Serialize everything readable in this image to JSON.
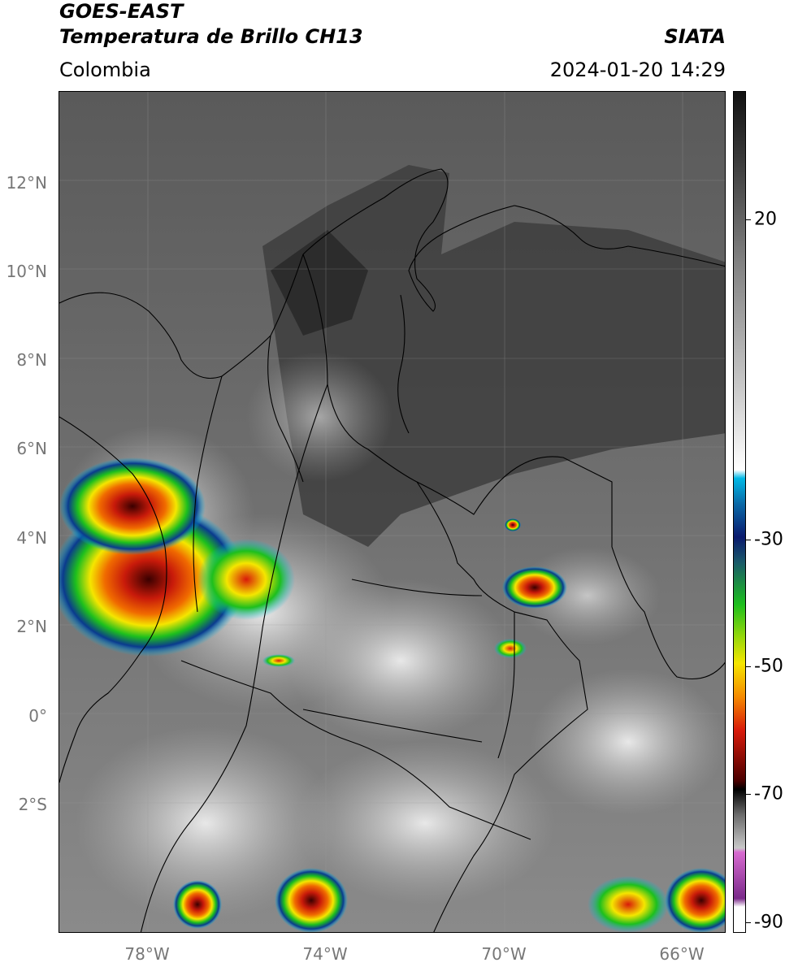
{
  "header": {
    "title_line1": "GOES-EAST",
    "title_line2": "Temperatura de Brillo CH13",
    "region": "Colombia",
    "brand": "SIATA",
    "timestamp": "2024-01-20 14:29"
  },
  "map": {
    "lat_labels": [
      "12°N",
      "10°N",
      "8°N",
      "6°N",
      "4°N",
      "2°N",
      "0°",
      "2°S"
    ],
    "lon_labels": [
      "78°W",
      "74°W",
      "70°W",
      "66°W"
    ]
  },
  "colorbar": {
    "tick_labels": [
      "20",
      "-30",
      "-50",
      "-70",
      "-90"
    ],
    "colors": {
      "warm_black": "#111111",
      "gray": "#808080",
      "white": "#ffffff",
      "cyan": "#00b8e6",
      "dark_blue": "#0a1a6e",
      "green": "#1dbf1d",
      "yellow": "#f5e600",
      "orange": "#f58a00",
      "red": "#d81a0a",
      "dark_red": "#4a0000",
      "magenta": "#d86ad0",
      "purple": "#7a2a8a"
    }
  }
}
